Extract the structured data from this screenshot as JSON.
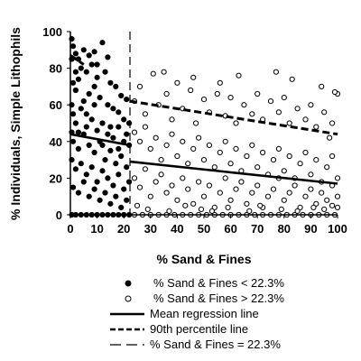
{
  "chart_data": {
    "type": "scatter",
    "title": "",
    "xlabel": "% Sand & Fines",
    "ylabel": "% Individuals, Simple Lithophils",
    "xlim": [
      0,
      100
    ],
    "ylim": [
      0,
      100
    ],
    "xticks": [
      0,
      10,
      20,
      30,
      40,
      50,
      60,
      70,
      80,
      90,
      100
    ],
    "yticks": [
      0,
      20,
      40,
      60,
      80,
      100
    ],
    "grid": false,
    "legend_position": "bottom",
    "threshold_x": 22.3,
    "series": [
      {
        "name": "% Sand & Fines < 22.3%",
        "marker": "filled-circle",
        "points": [
          [
            0.5,
            96
          ],
          [
            1,
            92
          ],
          [
            2,
            88
          ],
          [
            3,
            85
          ],
          [
            5,
            90
          ],
          [
            7,
            87
          ],
          [
            9,
            89
          ],
          [
            12,
            94
          ],
          [
            4,
            80
          ],
          [
            6,
            78
          ],
          [
            8,
            82
          ],
          [
            10,
            75
          ],
          [
            13,
            78
          ],
          [
            15,
            72
          ],
          [
            17,
            70
          ],
          [
            19,
            65
          ],
          [
            21,
            63
          ],
          [
            1,
            72
          ],
          [
            2,
            68
          ],
          [
            3,
            74
          ],
          [
            5,
            62
          ],
          [
            7,
            66
          ],
          [
            9,
            70
          ],
          [
            11,
            64
          ],
          [
            14,
            60
          ],
          [
            16,
            58
          ],
          [
            18,
            56
          ],
          [
            20,
            52
          ],
          [
            22,
            50
          ],
          [
            1,
            55
          ],
          [
            2,
            50
          ],
          [
            4,
            58
          ],
          [
            6,
            48
          ],
          [
            8,
            52
          ],
          [
            10,
            46
          ],
          [
            12,
            50
          ],
          [
            14,
            44
          ],
          [
            16,
            42
          ],
          [
            18,
            48
          ],
          [
            20,
            40
          ],
          [
            22,
            38
          ],
          [
            1,
            40
          ],
          [
            3,
            36
          ],
          [
            5,
            44
          ],
          [
            7,
            38
          ],
          [
            9,
            34
          ],
          [
            11,
            40
          ],
          [
            13,
            30
          ],
          [
            15,
            35
          ],
          [
            17,
            28
          ],
          [
            19,
            32
          ],
          [
            21,
            26
          ],
          [
            0.5,
            30
          ],
          [
            2,
            25
          ],
          [
            4,
            28
          ],
          [
            6,
            22
          ],
          [
            8,
            26
          ],
          [
            10,
            18
          ],
          [
            12,
            24
          ],
          [
            14,
            20
          ],
          [
            16,
            16
          ],
          [
            18,
            22
          ],
          [
            20,
            14
          ],
          [
            22,
            18
          ],
          [
            1,
            15
          ],
          [
            3,
            12
          ],
          [
            5,
            18
          ],
          [
            7,
            10
          ],
          [
            9,
            14
          ],
          [
            11,
            8
          ],
          [
            13,
            12
          ],
          [
            15,
            6
          ],
          [
            17,
            10
          ],
          [
            19,
            4
          ],
          [
            21,
            8
          ],
          [
            0.5,
            0
          ],
          [
            2,
            0
          ],
          [
            4,
            0
          ],
          [
            6,
            0
          ],
          [
            8,
            0
          ],
          [
            10,
            0
          ],
          [
            12,
            0
          ],
          [
            14,
            0
          ],
          [
            16,
            0
          ],
          [
            18,
            0
          ],
          [
            20,
            0
          ],
          [
            22,
            0
          ],
          [
            3,
            45
          ],
          [
            6,
            55
          ],
          [
            9,
            60
          ],
          [
            12,
            38
          ],
          [
            15,
            48
          ],
          [
            18,
            36
          ],
          [
            21,
            44
          ],
          [
            10,
            82
          ],
          [
            14,
            86
          ],
          [
            2,
            78
          ],
          [
            0.5,
            45
          ],
          [
            0.5,
            60
          ],
          [
            0.5,
            85
          ]
        ]
      },
      {
        "name": "% Sand & Fines > 22.3%",
        "marker": "open-circle",
        "points": [
          [
            24,
            62
          ],
          [
            26,
            70
          ],
          [
            28,
            55
          ],
          [
            31,
            77
          ],
          [
            33,
            60
          ],
          [
            36,
            66
          ],
          [
            38,
            52
          ],
          [
            40,
            72
          ],
          [
            42,
            58
          ],
          [
            45,
            68
          ],
          [
            47,
            50
          ],
          [
            50,
            63
          ],
          [
            52,
            56
          ],
          [
            55,
            66
          ],
          [
            58,
            54
          ],
          [
            60,
            64
          ],
          [
            62,
            50
          ],
          [
            65,
            60
          ],
          [
            68,
            55
          ],
          [
            70,
            66
          ],
          [
            72,
            52
          ],
          [
            75,
            62
          ],
          [
            78,
            56
          ],
          [
            80,
            64
          ],
          [
            82,
            50
          ],
          [
            85,
            58
          ],
          [
            88,
            52
          ],
          [
            90,
            60
          ],
          [
            92,
            48
          ],
          [
            95,
            56
          ],
          [
            98,
            50
          ],
          [
            100,
            66
          ],
          [
            35,
            78
          ],
          [
            46,
            75
          ],
          [
            63,
            76
          ],
          [
            77,
            78
          ],
          [
            94,
            70
          ],
          [
            99,
            67
          ],
          [
            83,
            74
          ],
          [
            56,
            72
          ],
          [
            24,
            45
          ],
          [
            26,
            40
          ],
          [
            28,
            48
          ],
          [
            30,
            36
          ],
          [
            32,
            42
          ],
          [
            34,
            30
          ],
          [
            36,
            38
          ],
          [
            38,
            44
          ],
          [
            40,
            32
          ],
          [
            42,
            40
          ],
          [
            44,
            28
          ],
          [
            46,
            36
          ],
          [
            48,
            42
          ],
          [
            50,
            30
          ],
          [
            52,
            38
          ],
          [
            54,
            26
          ],
          [
            56,
            34
          ],
          [
            58,
            40
          ],
          [
            60,
            28
          ],
          [
            62,
            36
          ],
          [
            64,
            24
          ],
          [
            66,
            32
          ],
          [
            68,
            38
          ],
          [
            70,
            26
          ],
          [
            72,
            34
          ],
          [
            74,
            22
          ],
          [
            76,
            30
          ],
          [
            78,
            36
          ],
          [
            80,
            24
          ],
          [
            82,
            32
          ],
          [
            84,
            20
          ],
          [
            86,
            28
          ],
          [
            88,
            34
          ],
          [
            90,
            22
          ],
          [
            92,
            30
          ],
          [
            94,
            18
          ],
          [
            96,
            26
          ],
          [
            98,
            32
          ],
          [
            100,
            20
          ],
          [
            97,
            42
          ],
          [
            24,
            20
          ],
          [
            26,
            15
          ],
          [
            28,
            25
          ],
          [
            30,
            10
          ],
          [
            32,
            18
          ],
          [
            34,
            22
          ],
          [
            36,
            12
          ],
          [
            38,
            16
          ],
          [
            40,
            8
          ],
          [
            42,
            20
          ],
          [
            44,
            14
          ],
          [
            46,
            6
          ],
          [
            48,
            18
          ],
          [
            50,
            10
          ],
          [
            52,
            16
          ],
          [
            54,
            4
          ],
          [
            56,
            12
          ],
          [
            58,
            20
          ],
          [
            60,
            8
          ],
          [
            62,
            14
          ],
          [
            64,
            18
          ],
          [
            66,
            6
          ],
          [
            68,
            12
          ],
          [
            70,
            16
          ],
          [
            72,
            4
          ],
          [
            74,
            10
          ],
          [
            76,
            14
          ],
          [
            78,
            20
          ],
          [
            80,
            8
          ],
          [
            82,
            12
          ],
          [
            84,
            16
          ],
          [
            86,
            4
          ],
          [
            88,
            10
          ],
          [
            90,
            14
          ],
          [
            92,
            6
          ],
          [
            94,
            12
          ],
          [
            96,
            8
          ],
          [
            98,
            16
          ],
          [
            100,
            10
          ],
          [
            100,
            4
          ],
          [
            24,
            0
          ],
          [
            27,
            0
          ],
          [
            30,
            0
          ],
          [
            33,
            0
          ],
          [
            36,
            0
          ],
          [
            39,
            0
          ],
          [
            42,
            0
          ],
          [
            45,
            0
          ],
          [
            48,
            0
          ],
          [
            51,
            0
          ],
          [
            54,
            0
          ],
          [
            57,
            0
          ],
          [
            60,
            0
          ],
          [
            63,
            0
          ],
          [
            66,
            0
          ],
          [
            69,
            0
          ],
          [
            72,
            0
          ],
          [
            75,
            0
          ],
          [
            78,
            0
          ],
          [
            81,
            0
          ],
          [
            84,
            0
          ],
          [
            87,
            0
          ],
          [
            90,
            0
          ],
          [
            93,
            0
          ],
          [
            96,
            0
          ],
          [
            99,
            0
          ],
          [
            25,
            5
          ],
          [
            29,
            3
          ],
          [
            37,
            2
          ],
          [
            43,
            5
          ],
          [
            49,
            3
          ],
          [
            53,
            2
          ],
          [
            59,
            4
          ],
          [
            67,
            2
          ],
          [
            71,
            5
          ],
          [
            79,
            3
          ],
          [
            85,
            2
          ],
          [
            91,
            4
          ],
          [
            95,
            3
          ],
          [
            98,
            5
          ]
        ]
      }
    ],
    "lines": [
      {
        "name": "Mean regression line",
        "style": "solid",
        "points": [
          [
            0,
            44
          ],
          [
            22.3,
            38
          ]
        ]
      },
      {
        "name": "Mean regression line",
        "style": "solid",
        "points": [
          [
            22.3,
            29
          ],
          [
            100,
            17
          ]
        ]
      },
      {
        "name": "90th percentile line",
        "style": "dashed",
        "points": [
          [
            22.3,
            62
          ],
          [
            100,
            44
          ]
        ]
      },
      {
        "name": "90th percentile line",
        "style": "dashed",
        "points": [
          [
            0,
            87
          ],
          [
            5,
            82
          ]
        ]
      }
    ],
    "legend": [
      {
        "label": "% Sand & Fines < 22.3%",
        "symbol": "filled-circle"
      },
      {
        "label": "% Sand & Fines > 22.3%",
        "symbol": "open-circle"
      },
      {
        "label": "Mean regression line",
        "symbol": "solid-line"
      },
      {
        "label": "90th percentile line",
        "symbol": "dashed-line"
      },
      {
        "label": "% Sand & Fines = 22.3%",
        "symbol": "long-dash-line"
      }
    ]
  }
}
